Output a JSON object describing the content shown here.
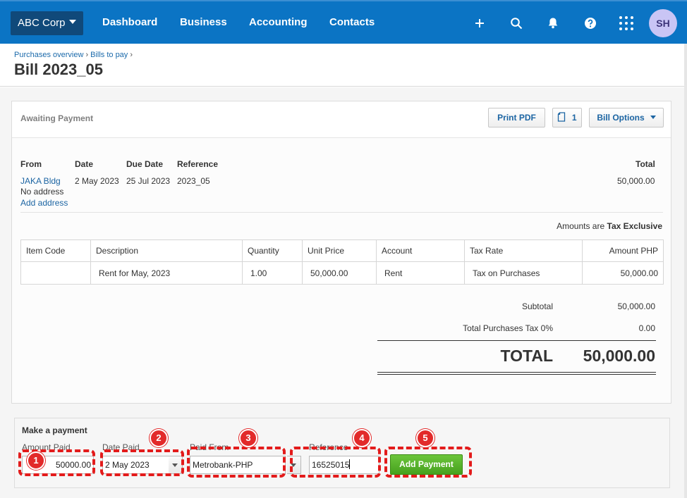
{
  "nav": {
    "org": "ABC Corp",
    "links": [
      "Dashboard",
      "Business",
      "Accounting",
      "Contacts"
    ],
    "user_initials": "SH"
  },
  "breadcrumb": {
    "items": [
      "Purchases overview",
      "Bills to pay"
    ]
  },
  "title": "Bill 2023_05",
  "bill": {
    "status": "Awaiting Payment",
    "buttons": {
      "print": "Print PDF",
      "attachments": "1",
      "options": "Bill Options"
    },
    "headers": {
      "from": "From",
      "date": "Date",
      "due": "Due Date",
      "reference": "Reference",
      "total": "Total"
    },
    "from_name": "JAKA Bldg",
    "from_address": "No address",
    "add_address": "Add address",
    "date": "2 May 2023",
    "due_date": "25 Jul 2023",
    "reference": "2023_05",
    "total": "50,000.00",
    "amounts_prefix": "Amounts are",
    "amounts_mode": "Tax Exclusive",
    "columns": [
      "Item Code",
      "Description",
      "Quantity",
      "Unit Price",
      "Account",
      "Tax Rate",
      "Amount PHP"
    ],
    "line": {
      "item_code": "",
      "description": "Rent for May, 2023",
      "quantity": "1.00",
      "unit_price": "50,000.00",
      "account": "Rent",
      "tax_rate": "Tax on Purchases",
      "amount": "50,000.00"
    },
    "subtotal_label": "Subtotal",
    "subtotal": "50,000.00",
    "tax_label": "Total Purchases Tax 0%",
    "tax": "0.00",
    "grand_label": "TOTAL",
    "grand_total": "50,000.00"
  },
  "payment": {
    "title": "Make a payment",
    "amount_label": "Amount Paid",
    "amount": "50000.00",
    "date_label": "Date Paid",
    "date": "2 May 2023",
    "from_label": "Paid From",
    "from": "Metrobank-PHP",
    "ref_label": "Reference",
    "reference": "16525015",
    "button": "Add Payment",
    "steps": [
      "1",
      "2",
      "3",
      "4",
      "5"
    ]
  },
  "colors": {
    "nav": "#0b74c4",
    "annotation": "#e31b1b",
    "add_button": "#46a11e"
  }
}
